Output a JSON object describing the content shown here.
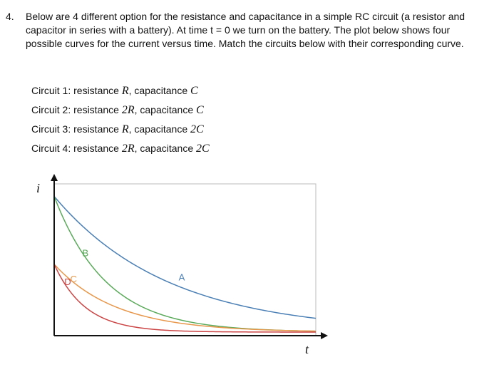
{
  "question": {
    "number": "4.",
    "text": "Below are 4 different option for the resistance and capacitance in a simple RC circuit (a resistor and capacitor in series with a battery). At time t = 0 we turn on the battery. The plot below shows four possible curves for the current versus time. Match the circuits below with their corresponding curve."
  },
  "circuits": [
    {
      "label": "Circuit 1: resistance ",
      "r": "R",
      "c_prefix": ", capacitance ",
      "c": "C"
    },
    {
      "label": "Circuit 2: resistance ",
      "r": "2R",
      "c_prefix": ", capacitance ",
      "c": "C"
    },
    {
      "label": "Circuit 3: resistance ",
      "r": "R",
      "c_prefix": ", capacitance ",
      "c": "2C"
    },
    {
      "label": "Circuit 4: resistance ",
      "r": "2R",
      "c_prefix": ", capacitance ",
      "c": "2C"
    }
  ],
  "chart_data": {
    "type": "line",
    "xlabel": "t",
    "ylabel": "i",
    "grid": false,
    "series": [
      {
        "name": "A",
        "color": "#4a7fb5",
        "i0": 1.0,
        "tau": 3.5,
        "floor": 0.0
      },
      {
        "name": "B",
        "color": "#5aaa5a",
        "i0": 1.0,
        "tau": 1.6,
        "floor": 0.0
      },
      {
        "name": "C",
        "color": "#e8974a",
        "i0": 0.5,
        "tau": 1.9,
        "floor": 0.0
      },
      {
        "name": "D",
        "color": "#cc4444",
        "i0": 0.5,
        "tau": 0.95,
        "floor": 0.0
      }
    ],
    "xlim": [
      0,
      8
    ],
    "ylim": [
      0,
      1.05
    ]
  }
}
